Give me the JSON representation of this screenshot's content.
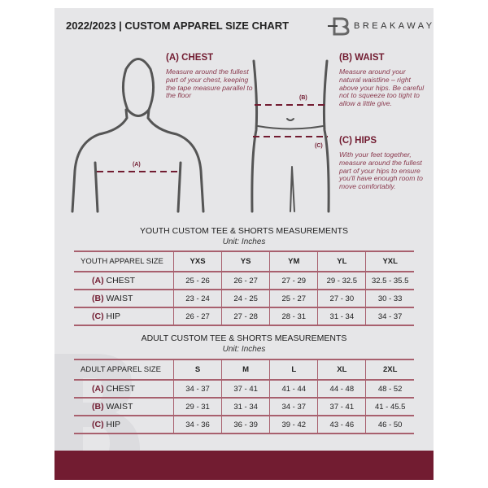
{
  "header": {
    "title": "2022/2023  |  CUSTOM APPAREL SIZE CHART",
    "brand": "BREAKAWAY"
  },
  "chest": {
    "heading": "(A) CHEST",
    "text": "Measure around the fullest part of your chest, keeping the tape measure parallel to the floor",
    "marker": "(A)"
  },
  "waist": {
    "heading": "(B) WAIST",
    "text": "Measure around your natural waistline – right above your hips. Be careful not to squeeze too tight to allow a little give.",
    "marker": "(B)"
  },
  "hips": {
    "heading": "(C) HIPS",
    "text": "With your feet together, measure around the fullest part of your hips to ensure you'll have enough room to move comfortably.",
    "marker": "(C)"
  },
  "youth": {
    "title": "YOUTH CUSTOM TEE & SHORTS MEASUREMENTS",
    "unit": "Unit: Inches",
    "header": "YOUTH APPAREL SIZE",
    "sizes": [
      "YXS",
      "YS",
      "YM",
      "YL",
      "YXL"
    ],
    "rows": [
      {
        "letter": "(A)",
        "label": "CHEST",
        "values": [
          "25 - 26",
          "26 - 27",
          "27 - 29",
          "29 - 32.5",
          "32.5 - 35.5"
        ]
      },
      {
        "letter": "(B)",
        "label": "WAIST",
        "values": [
          "23 - 24",
          "24 - 25",
          "25 - 27",
          "27 - 30",
          "30 - 33"
        ]
      },
      {
        "letter": "(C)",
        "label": "HIP",
        "values": [
          "26 - 27",
          "27 - 28",
          "28 - 31",
          "31 - 34",
          "34 - 37"
        ]
      }
    ]
  },
  "adult": {
    "title": "ADULT CUSTOM TEE & SHORTS MEASUREMENTS",
    "unit": "Unit: Inches",
    "header": "ADULT APPAREL SIZE",
    "sizes": [
      "S",
      "M",
      "L",
      "XL",
      "2XL"
    ],
    "rows": [
      {
        "letter": "(A)",
        "label": "CHEST",
        "values": [
          "34 - 37",
          "37 - 41",
          "41 - 44",
          "44 - 48",
          "48 - 52"
        ]
      },
      {
        "letter": "(B)",
        "label": "WAIST",
        "values": [
          "29 - 31",
          "31 - 34",
          "34 - 37",
          "37 - 41",
          "41 - 45.5"
        ]
      },
      {
        "letter": "(C)",
        "label": "HIP",
        "values": [
          "34 - 36",
          "36 - 39",
          "39 - 42",
          "43 - 46",
          "46 - 50"
        ]
      }
    ]
  },
  "colors": {
    "accent": "#721c31",
    "panel": "#e6e6e8"
  }
}
